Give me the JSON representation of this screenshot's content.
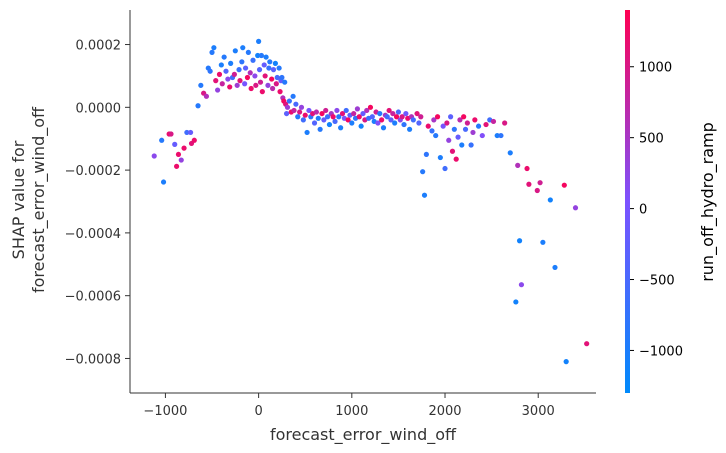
{
  "chart_data": {
    "type": "scatter",
    "xlabel": "forecast_error_wind_off",
    "ylabel_line1": "SHAP value for",
    "ylabel_line2": "forecast_error_wind_off",
    "xlim": [
      -1380,
      3620
    ],
    "ylim": [
      -0.00091,
      0.00031
    ],
    "x_ticks": [
      -1000,
      0,
      1000,
      2000,
      3000
    ],
    "x_tick_labels": [
      "−1000",
      "0",
      "1000",
      "2000",
      "3000"
    ],
    "y_ticks": [
      0.0002,
      0.0,
      -0.0002,
      -0.0004,
      -0.0006,
      -0.0008
    ],
    "y_tick_labels": [
      "0.0002",
      "0.0000",
      "−0.0002",
      "−0.0004",
      "−0.0006",
      "−0.0008"
    ],
    "grid": false,
    "colorbar": {
      "label": "run_off_hydro_ramp",
      "range": [
        -1300,
        1400
      ],
      "ticks": [
        1000,
        500,
        0,
        -500,
        -1000
      ],
      "tick_labels": [
        "1000",
        "500",
        "0",
        "−500",
        "−1000"
      ],
      "color_low": "#008afb",
      "color_mid": "#7c52ff",
      "color_high": "#ff0052"
    },
    "points": [
      {
        "x": -1120,
        "y": -0.000155,
        "c": 200
      },
      {
        "x": -1040,
        "y": -0.000105,
        "c": -900
      },
      {
        "x": -1020,
        "y": -0.000238,
        "c": -1000
      },
      {
        "x": -960,
        "y": -8.5e-05,
        "c": 1200
      },
      {
        "x": -940,
        "y": -8.5e-05,
        "c": 1000
      },
      {
        "x": -900,
        "y": -0.000118,
        "c": -200
      },
      {
        "x": -880,
        "y": -0.000188,
        "c": 1200
      },
      {
        "x": -860,
        "y": -0.00015,
        "c": 1200
      },
      {
        "x": -830,
        "y": -0.000168,
        "c": 300
      },
      {
        "x": -800,
        "y": -0.00013,
        "c": 1200
      },
      {
        "x": -770,
        "y": -8e-05,
        "c": -600
      },
      {
        "x": -730,
        "y": -8e-05,
        "c": -200
      },
      {
        "x": -720,
        "y": -0.000115,
        "c": 1100
      },
      {
        "x": -690,
        "y": -0.000105,
        "c": 1200
      },
      {
        "x": -650,
        "y": 5e-06,
        "c": -900
      },
      {
        "x": -620,
        "y": 7e-05,
        "c": -900
      },
      {
        "x": -590,
        "y": 4.5e-05,
        "c": 1000
      },
      {
        "x": -560,
        "y": 3.5e-05,
        "c": 600
      },
      {
        "x": -540,
        "y": 0.000125,
        "c": -900
      },
      {
        "x": -520,
        "y": 0.000115,
        "c": -800
      },
      {
        "x": -500,
        "y": 0.000175,
        "c": -900
      },
      {
        "x": -480,
        "y": 0.00019,
        "c": -1000
      },
      {
        "x": -460,
        "y": 8.5e-05,
        "c": 1100
      },
      {
        "x": -440,
        "y": 5.5e-05,
        "c": 300
      },
      {
        "x": -420,
        "y": 0.000105,
        "c": 1200
      },
      {
        "x": -400,
        "y": 0.000135,
        "c": -1000
      },
      {
        "x": -390,
        "y": 7.5e-05,
        "c": 800
      },
      {
        "x": -370,
        "y": 0.00016,
        "c": -900
      },
      {
        "x": -350,
        "y": 0.000115,
        "c": -400
      },
      {
        "x": -330,
        "y": 9e-05,
        "c": 200
      },
      {
        "x": -310,
        "y": 6.5e-05,
        "c": 1200
      },
      {
        "x": -300,
        "y": 0.00014,
        "c": -1000
      },
      {
        "x": -280,
        "y": 9.5e-05,
        "c": -600
      },
      {
        "x": -260,
        "y": 0.000105,
        "c": 900
      },
      {
        "x": -250,
        "y": 0.00018,
        "c": -1000
      },
      {
        "x": -230,
        "y": 7e-05,
        "c": 400
      },
      {
        "x": -210,
        "y": 0.00012,
        "c": -700
      },
      {
        "x": -200,
        "y": 8.5e-05,
        "c": 1100
      },
      {
        "x": -180,
        "y": 0.000145,
        "c": -800
      },
      {
        "x": -170,
        "y": 0.00019,
        "c": -1000
      },
      {
        "x": -150,
        "y": 7.5e-05,
        "c": 0
      },
      {
        "x": -140,
        "y": 0.000125,
        "c": -300
      },
      {
        "x": -120,
        "y": 9.5e-05,
        "c": 1300
      },
      {
        "x": -110,
        "y": 0.000175,
        "c": -900
      },
      {
        "x": -90,
        "y": 0.00011,
        "c": 600
      },
      {
        "x": -80,
        "y": 6e-05,
        "c": 1200
      },
      {
        "x": -60,
        "y": 0.00015,
        "c": -700
      },
      {
        "x": -40,
        "y": 0.0001,
        "c": 200
      },
      {
        "x": -30,
        "y": 7e-05,
        "c": 1000
      },
      {
        "x": -10,
        "y": 0.000165,
        "c": -1100
      },
      {
        "x": 0,
        "y": 0.00021,
        "c": -1000
      },
      {
        "x": 10,
        "y": 0.00012,
        "c": -400
      },
      {
        "x": 20,
        "y": 8e-05,
        "c": 900
      },
      {
        "x": 30,
        "y": 0.000165,
        "c": -900
      },
      {
        "x": 40,
        "y": 5e-05,
        "c": 1200
      },
      {
        "x": 60,
        "y": 0.000135,
        "c": -200
      },
      {
        "x": 70,
        "y": 0.0001,
        "c": 1100
      },
      {
        "x": 80,
        "y": 0.00016,
        "c": -1000
      },
      {
        "x": 100,
        "y": 7e-05,
        "c": 300
      },
      {
        "x": 110,
        "y": 0.000125,
        "c": -700
      },
      {
        "x": 120,
        "y": 0.000145,
        "c": -900
      },
      {
        "x": 140,
        "y": 9e-05,
        "c": 1300
      },
      {
        "x": 150,
        "y": 6e-05,
        "c": 700
      },
      {
        "x": 160,
        "y": 0.00012,
        "c": -300
      },
      {
        "x": 180,
        "y": 0.00014,
        "c": -1100
      },
      {
        "x": 190,
        "y": 7.5e-05,
        "c": 1000
      },
      {
        "x": 200,
        "y": 9.5e-05,
        "c": -500
      },
      {
        "x": 220,
        "y": 0.000125,
        "c": -900
      },
      {
        "x": 230,
        "y": 5e-05,
        "c": 1200
      },
      {
        "x": 240,
        "y": 8.5e-05,
        "c": -200
      },
      {
        "x": 250,
        "y": 9.5e-05,
        "c": -800
      },
      {
        "x": 260,
        "y": 3e-05,
        "c": 600
      },
      {
        "x": 270,
        "y": 2e-05,
        "c": 1300
      },
      {
        "x": 280,
        "y": 8e-05,
        "c": -900
      },
      {
        "x": 290,
        "y": 1e-05,
        "c": 1100
      },
      {
        "x": 300,
        "y": -2e-05,
        "c": -300
      },
      {
        "x": 310,
        "y": 0.0,
        "c": 400
      },
      {
        "x": 330,
        "y": 2e-05,
        "c": -700
      },
      {
        "x": 350,
        "y": -1.5e-05,
        "c": 1200
      },
      {
        "x": 370,
        "y": 3.5e-05,
        "c": -900
      },
      {
        "x": 380,
        "y": -1e-05,
        "c": 800
      },
      {
        "x": 400,
        "y": 1e-05,
        "c": -500
      },
      {
        "x": 420,
        "y": -3e-05,
        "c": -900
      },
      {
        "x": 440,
        "y": -1.5e-05,
        "c": 1000
      },
      {
        "x": 460,
        "y": 0.0,
        "c": 300
      },
      {
        "x": 480,
        "y": -4e-05,
        "c": -600
      },
      {
        "x": 500,
        "y": -2.5e-05,
        "c": 1200
      },
      {
        "x": 520,
        "y": -8e-05,
        "c": -1000
      },
      {
        "x": 540,
        "y": -1e-05,
        "c": 0
      },
      {
        "x": 560,
        "y": -3e-05,
        "c": -800
      },
      {
        "x": 580,
        "y": -2e-05,
        "c": 1100
      },
      {
        "x": 600,
        "y": -5e-05,
        "c": -400
      },
      {
        "x": 620,
        "y": -1.5e-05,
        "c": 700
      },
      {
        "x": 640,
        "y": -3.5e-05,
        "c": -1000
      },
      {
        "x": 660,
        "y": -7e-05,
        "c": -900
      },
      {
        "x": 680,
        "y": -2e-05,
        "c": 1300
      },
      {
        "x": 700,
        "y": -4e-05,
        "c": -200
      },
      {
        "x": 720,
        "y": -1e-05,
        "c": 900
      },
      {
        "x": 740,
        "y": -3e-05,
        "c": -700
      },
      {
        "x": 760,
        "y": -5.5e-05,
        "c": -1100
      },
      {
        "x": 780,
        "y": -2e-05,
        "c": 500
      },
      {
        "x": 800,
        "y": -3e-05,
        "c": 1200
      },
      {
        "x": 820,
        "y": -4.5e-05,
        "c": -500
      },
      {
        "x": 840,
        "y": -1e-05,
        "c": 200
      },
      {
        "x": 860,
        "y": -3e-05,
        "c": -900
      },
      {
        "x": 880,
        "y": -6.5e-05,
        "c": -1000
      },
      {
        "x": 900,
        "y": -2e-05,
        "c": 1100
      },
      {
        "x": 920,
        "y": -3.5e-05,
        "c": 0
      },
      {
        "x": 940,
        "y": -1e-05,
        "c": -600
      },
      {
        "x": 960,
        "y": -4e-05,
        "c": 1300
      },
      {
        "x": 980,
        "y": -2.5e-05,
        "c": -300
      },
      {
        "x": 1000,
        "y": -5e-05,
        "c": -1000
      },
      {
        "x": 1020,
        "y": -2e-05,
        "c": 800
      },
      {
        "x": 1040,
        "y": -3.5e-05,
        "c": -800
      },
      {
        "x": 1060,
        "y": -5e-06,
        "c": 400
      },
      {
        "x": 1080,
        "y": -3e-05,
        "c": 1200
      },
      {
        "x": 1100,
        "y": -6e-05,
        "c": -1100
      },
      {
        "x": 1120,
        "y": -2e-05,
        "c": -200
      },
      {
        "x": 1140,
        "y": -4e-05,
        "c": 1000
      },
      {
        "x": 1160,
        "y": -1e-05,
        "c": 600
      },
      {
        "x": 1180,
        "y": -3.5e-05,
        "c": -700
      },
      {
        "x": 1200,
        "y": 0.0,
        "c": 1300
      },
      {
        "x": 1220,
        "y": -3e-05,
        "c": -400
      },
      {
        "x": 1240,
        "y": -4.5e-05,
        "c": -1000
      },
      {
        "x": 1260,
        "y": -1.5e-05,
        "c": 900
      },
      {
        "x": 1280,
        "y": -5e-05,
        "c": 100
      },
      {
        "x": 1300,
        "y": -2e-05,
        "c": -900
      },
      {
        "x": 1320,
        "y": -4e-05,
        "c": 1200
      },
      {
        "x": 1340,
        "y": -6.5e-05,
        "c": -1000
      },
      {
        "x": 1360,
        "y": -2.5e-05,
        "c": 500
      },
      {
        "x": 1380,
        "y": -3e-05,
        "c": -600
      },
      {
        "x": 1400,
        "y": -1e-05,
        "c": 1100
      },
      {
        "x": 1420,
        "y": -4e-05,
        "c": -300
      },
      {
        "x": 1440,
        "y": -2e-05,
        "c": 800
      },
      {
        "x": 1460,
        "y": -5e-05,
        "c": -1000
      },
      {
        "x": 1480,
        "y": -3e-05,
        "c": 1300
      },
      {
        "x": 1500,
        "y": -1.5e-05,
        "c": -500
      },
      {
        "x": 1520,
        "y": -4e-05,
        "c": 200
      },
      {
        "x": 1540,
        "y": -3e-05,
        "c": 1000
      },
      {
        "x": 1560,
        "y": -5.5e-05,
        "c": -800
      },
      {
        "x": 1580,
        "y": -2e-05,
        "c": -100
      },
      {
        "x": 1600,
        "y": -3.5e-05,
        "c": 1200
      },
      {
        "x": 1620,
        "y": -7e-05,
        "c": -1000
      },
      {
        "x": 1640,
        "y": -3e-05,
        "c": 600
      },
      {
        "x": 1660,
        "y": -4e-05,
        "c": -600
      },
      {
        "x": 1700,
        "y": -2e-05,
        "c": 1100
      },
      {
        "x": 1720,
        "y": -5e-05,
        "c": -400
      },
      {
        "x": 1740,
        "y": -3e-05,
        "c": 900
      },
      {
        "x": 1760,
        "y": -0.000205,
        "c": -900
      },
      {
        "x": 1780,
        "y": -0.00028,
        "c": -1000
      },
      {
        "x": 1800,
        "y": -0.00015,
        "c": -800
      },
      {
        "x": 1820,
        "y": -6e-05,
        "c": 1200
      },
      {
        "x": 1860,
        "y": -7.5e-05,
        "c": -700
      },
      {
        "x": 1880,
        "y": -4e-05,
        "c": 500
      },
      {
        "x": 1900,
        "y": -9e-05,
        "c": -900
      },
      {
        "x": 1920,
        "y": -3e-05,
        "c": 1300
      },
      {
        "x": 1950,
        "y": -0.00016,
        "c": -1000
      },
      {
        "x": 1980,
        "y": -6e-05,
        "c": 0
      },
      {
        "x": 2000,
        "y": -0.000195,
        "c": -600
      },
      {
        "x": 2020,
        "y": -5e-05,
        "c": 1000
      },
      {
        "x": 2040,
        "y": -0.000105,
        "c": 300
      },
      {
        "x": 2060,
        "y": -3e-05,
        "c": -300
      },
      {
        "x": 2080,
        "y": -0.00014,
        "c": 1100
      },
      {
        "x": 2100,
        "y": -7e-05,
        "c": -800
      },
      {
        "x": 2120,
        "y": -0.000165,
        "c": 1200
      },
      {
        "x": 2140,
        "y": -9.5e-05,
        "c": -200
      },
      {
        "x": 2160,
        "y": -4e-05,
        "c": 700
      },
      {
        "x": 2180,
        "y": -0.00012,
        "c": -1000
      },
      {
        "x": 2200,
        "y": -3e-05,
        "c": 1300
      },
      {
        "x": 2220,
        "y": -7e-05,
        "c": -500
      },
      {
        "x": 2240,
        "y": -5e-05,
        "c": 900
      },
      {
        "x": 2280,
        "y": -0.00012,
        "c": -700
      },
      {
        "x": 2300,
        "y": -8e-05,
        "c": 400
      },
      {
        "x": 2320,
        "y": -4e-05,
        "c": 1200
      },
      {
        "x": 2360,
        "y": -6e-05,
        "c": -900
      },
      {
        "x": 2400,
        "y": -9e-05,
        "c": 100
      },
      {
        "x": 2440,
        "y": -5.5e-05,
        "c": 1100
      },
      {
        "x": 2480,
        "y": -4e-05,
        "c": -600
      },
      {
        "x": 2520,
        "y": -4.5e-05,
        "c": 800
      },
      {
        "x": 2560,
        "y": -9e-05,
        "c": -1000
      },
      {
        "x": 2600,
        "y": -9e-05,
        "c": -800
      },
      {
        "x": 2640,
        "y": -5e-05,
        "c": 1000
      },
      {
        "x": 2700,
        "y": -0.000145,
        "c": -1000
      },
      {
        "x": 2760,
        "y": -0.00062,
        "c": -1100
      },
      {
        "x": 2780,
        "y": -0.000185,
        "c": 600
      },
      {
        "x": 2800,
        "y": -0.000425,
        "c": -1100
      },
      {
        "x": 2820,
        "y": -0.000565,
        "c": 200
      },
      {
        "x": 2880,
        "y": -0.000195,
        "c": 1200
      },
      {
        "x": 2900,
        "y": -0.000245,
        "c": 1100
      },
      {
        "x": 2990,
        "y": -0.000265,
        "c": 1000
      },
      {
        "x": 3020,
        "y": -0.00024,
        "c": 900
      },
      {
        "x": 3050,
        "y": -0.00043,
        "c": -1000
      },
      {
        "x": 3130,
        "y": -0.000295,
        "c": -1100
      },
      {
        "x": 3180,
        "y": -0.00051,
        "c": -1000
      },
      {
        "x": 3280,
        "y": -0.000248,
        "c": 1300
      },
      {
        "x": 3300,
        "y": -0.00081,
        "c": -1100
      },
      {
        "x": 3400,
        "y": -0.00032,
        "c": 300
      },
      {
        "x": 3520,
        "y": -0.000753,
        "c": 1100
      }
    ]
  }
}
